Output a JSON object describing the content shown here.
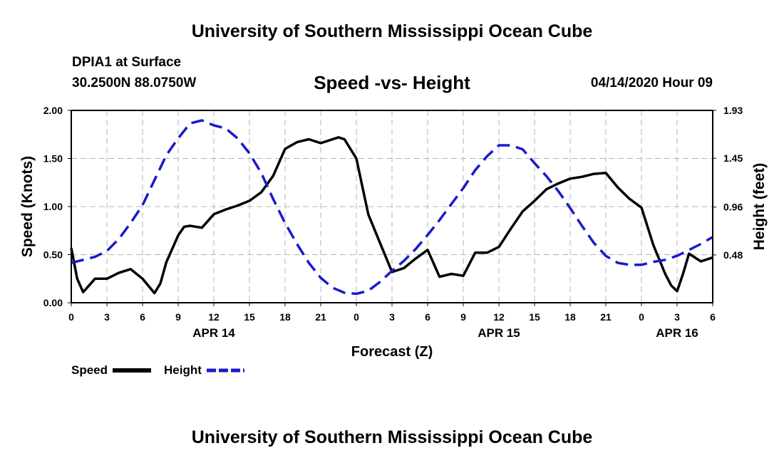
{
  "header": {
    "title": "University of Southern Mississippi Ocean Cube",
    "station": "DPIA1 at Surface",
    "coords": "30.2500N 88.0750W",
    "date": "04/14/2020 Hour 09"
  },
  "footer": {
    "title": "University of Southern Mississippi Ocean Cube"
  },
  "colors": {
    "speed": "#000000",
    "height": "#1a1acc",
    "grid": "#b4b4b4"
  },
  "chart_data": {
    "type": "line",
    "title": "Speed -vs- Height",
    "xlabel": "Forecast (Z)",
    "ylabel": "Speed (Knots)",
    "y2label": "Height (feet)",
    "xlim": [
      0,
      54
    ],
    "ylim": [
      0,
      2
    ],
    "y2lim": [
      0,
      1.93
    ],
    "grid": true,
    "x_ticks": [
      0,
      3,
      6,
      9,
      12,
      15,
      18,
      21,
      24,
      27,
      30,
      33,
      36,
      39,
      42,
      45,
      48,
      51,
      54
    ],
    "x_tick_labels": [
      "0",
      "3",
      "6",
      "9",
      "12",
      "15",
      "18",
      "21",
      "0",
      "3",
      "6",
      "9",
      "12",
      "15",
      "18",
      "21",
      "0",
      "3",
      "6"
    ],
    "day_labels": [
      {
        "x": 12,
        "label": "APR 14"
      },
      {
        "x": 36,
        "label": "APR 15"
      },
      {
        "x": 51,
        "label": "APR 16"
      }
    ],
    "y_ticks": [
      0,
      0.5,
      1,
      1.5,
      2
    ],
    "y_tick_labels": [
      "0.00",
      "0.50",
      "1.00",
      "1.50",
      "2.00"
    ],
    "y2_ticks": [
      0.48,
      0.96,
      1.45,
      1.93
    ],
    "y2_tick_labels": [
      "0.48",
      "0.96",
      "1.45",
      "1.93"
    ],
    "legend": [
      {
        "name": "Speed",
        "style": "solid"
      },
      {
        "name": "Height",
        "style": "dashed"
      }
    ],
    "series": [
      {
        "name": "Speed",
        "axis": "left",
        "x": [
          0,
          0.5,
          1,
          2,
          3,
          4,
          5,
          6,
          7,
          7.5,
          8,
          9,
          9.5,
          10,
          11,
          12,
          13,
          14,
          15,
          16,
          17,
          18,
          19,
          20,
          21,
          22,
          22.5,
          23,
          24,
          25,
          26,
          27,
          28,
          29,
          30,
          31,
          32,
          33,
          34,
          35,
          36,
          37,
          38,
          39,
          40,
          41,
          42,
          43,
          44,
          45,
          46,
          47,
          48,
          49,
          50,
          50.5,
          51,
          51.5,
          52,
          53,
          54
        ],
        "values": [
          0.57,
          0.25,
          0.11,
          0.25,
          0.25,
          0.31,
          0.35,
          0.25,
          0.1,
          0.2,
          0.42,
          0.7,
          0.79,
          0.8,
          0.78,
          0.92,
          0.97,
          1.01,
          1.06,
          1.15,
          1.32,
          1.6,
          1.67,
          1.7,
          1.66,
          1.7,
          1.72,
          1.7,
          1.5,
          0.92,
          0.62,
          0.32,
          0.36,
          0.46,
          0.55,
          0.27,
          0.3,
          0.28,
          0.52,
          0.52,
          0.58,
          0.77,
          0.95,
          1.06,
          1.18,
          1.24,
          1.29,
          1.31,
          1.34,
          1.35,
          1.2,
          1.08,
          0.99,
          0.6,
          0.3,
          0.18,
          0.12,
          0.3,
          0.51,
          0.43,
          0.47
        ]
      },
      {
        "name": "Height",
        "axis": "right",
        "x": [
          0,
          1,
          2,
          3,
          4,
          5,
          6,
          7,
          8,
          9,
          10,
          11,
          12,
          13,
          14,
          15,
          16,
          17,
          18,
          19,
          20,
          21,
          22,
          23,
          24,
          25,
          26,
          27,
          28,
          29,
          30,
          31,
          32,
          33,
          34,
          35,
          36,
          37,
          38,
          39,
          40,
          41,
          42,
          43,
          44,
          45,
          46,
          47,
          48,
          49,
          50,
          51,
          52,
          53,
          54
        ],
        "values": [
          0.4,
          0.43,
          0.46,
          0.52,
          0.64,
          0.8,
          0.98,
          1.23,
          1.48,
          1.65,
          1.8,
          1.83,
          1.78,
          1.75,
          1.65,
          1.5,
          1.3,
          1.04,
          0.8,
          0.59,
          0.4,
          0.25,
          0.15,
          0.1,
          0.09,
          0.12,
          0.21,
          0.32,
          0.42,
          0.54,
          0.68,
          0.83,
          0.99,
          1.15,
          1.33,
          1.47,
          1.58,
          1.58,
          1.54,
          1.4,
          1.27,
          1.12,
          0.95,
          0.77,
          0.6,
          0.47,
          0.4,
          0.38,
          0.38,
          0.41,
          0.43,
          0.47,
          0.53,
          0.59,
          0.66
        ]
      }
    ]
  }
}
